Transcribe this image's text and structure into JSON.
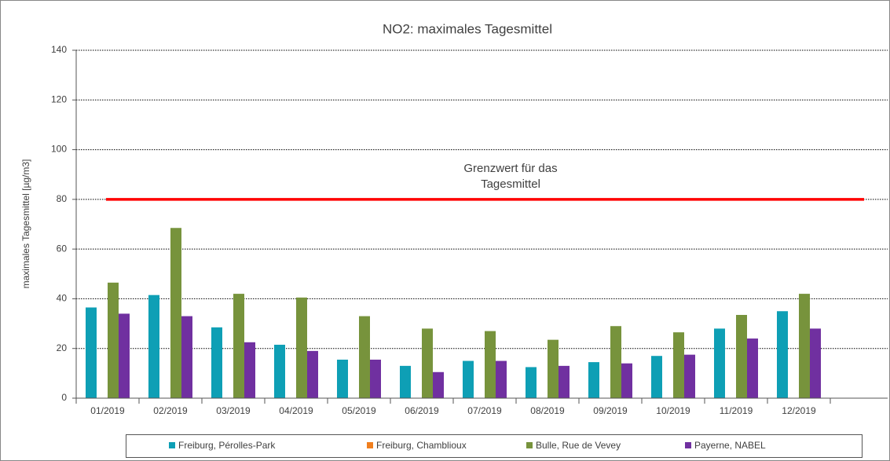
{
  "chart_data": {
    "type": "bar",
    "title": "NO2: maximales Tagesmittel",
    "y_label": "maximales Tagesmittel [µg/m3]",
    "categories": [
      "01/2019",
      "02/2019",
      "03/2019",
      "04/2019",
      "05/2019",
      "06/2019",
      "07/2019",
      "08/2019",
      "09/2019",
      "10/2019",
      "11/2019",
      "12/2019"
    ],
    "series": [
      {
        "name": "Freiburg, Pérolles-Park",
        "color": "#0e9fb5",
        "values": [
          36.5,
          41.5,
          28.5,
          21.5,
          15.5,
          13,
          15,
          12.5,
          14.5,
          17,
          28,
          35
        ]
      },
      {
        "name": "Freiburg, Chamblioux",
        "color": "#f07f1e",
        "values": [
          null,
          null,
          null,
          null,
          null,
          null,
          null,
          null,
          null,
          null,
          null,
          null
        ]
      },
      {
        "name": "Bulle, Rue de Vevey",
        "color": "#77933c",
        "values": [
          46.5,
          68.5,
          42,
          40.5,
          33,
          28,
          27,
          23.5,
          29,
          26.5,
          33.5,
          42
        ]
      },
      {
        "name": "Payerne, NABEL",
        "color": "#7030a0",
        "values": [
          34,
          33,
          22.5,
          19,
          15.5,
          10.5,
          15,
          13,
          14,
          17.5,
          24,
          28
        ]
      }
    ],
    "threshold": 80,
    "threshold_color": "#ff0000",
    "annotation": [
      "Grenzwert für das",
      "Tagesmittel"
    ],
    "ylim": [
      0,
      140
    ],
    "yticks": [
      0,
      20,
      40,
      60,
      80,
      100,
      120,
      140
    ],
    "grid": true,
    "legend": "bottom"
  }
}
